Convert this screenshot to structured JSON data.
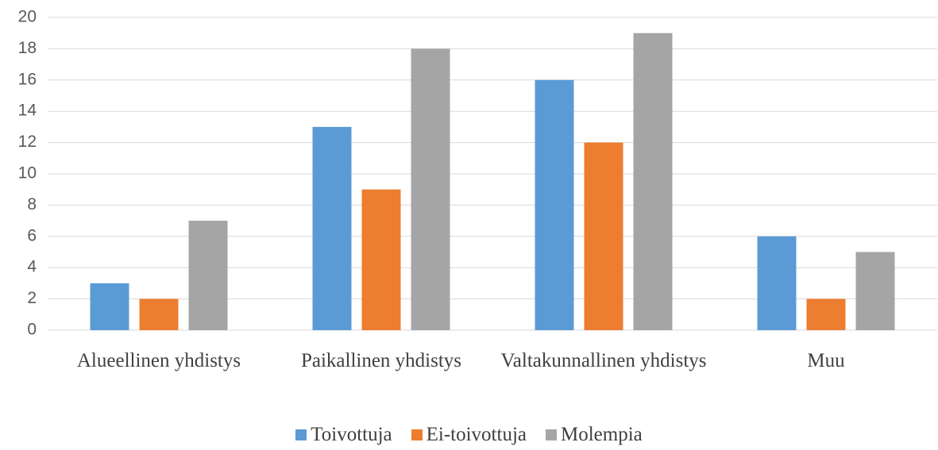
{
  "chart_data": {
    "type": "bar",
    "categories": [
      "Alueellinen yhdistys",
      "Paikallinen yhdistys",
      "Valtakunnallinen yhdistys",
      "Muu"
    ],
    "series": [
      {
        "name": "Toivottuja",
        "color": "#5b9bd5",
        "values": [
          3,
          13,
          16,
          6
        ]
      },
      {
        "name": "Ei-toivottuja",
        "color": "#ed7d31",
        "values": [
          2,
          9,
          12,
          2
        ]
      },
      {
        "name": "Molempia",
        "color": "#a5a5a5",
        "values": [
          7,
          18,
          19,
          5
        ]
      }
    ],
    "ylim": [
      0,
      20
    ],
    "yticks": [
      0,
      2,
      4,
      6,
      8,
      10,
      12,
      14,
      16,
      18,
      20
    ],
    "grid": true,
    "legend": "bottom"
  }
}
